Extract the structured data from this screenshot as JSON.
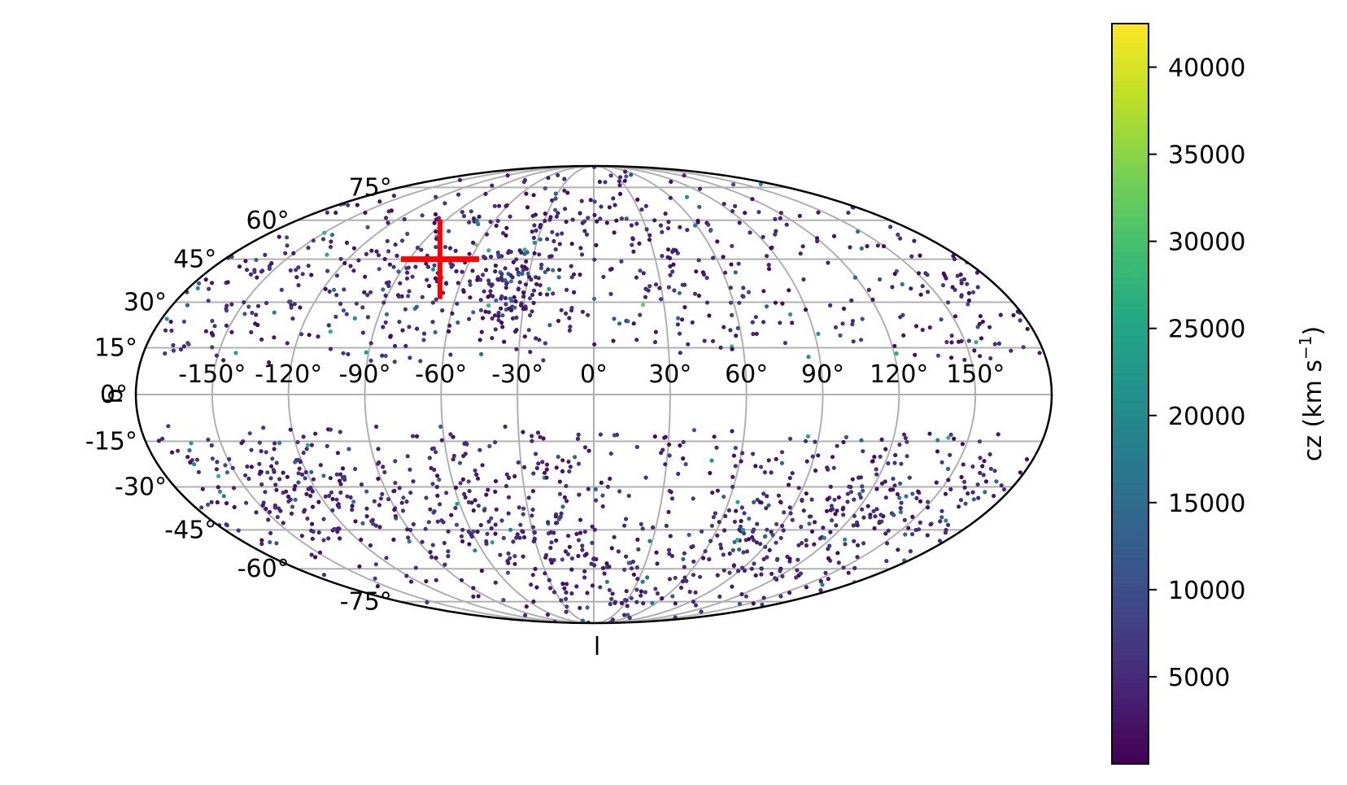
{
  "chart_data": {
    "type": "scatter",
    "projection": "mollweide",
    "xlabel": "l",
    "ylabel": "b",
    "grid": true,
    "lon_ticks": [
      -150,
      -120,
      -90,
      -60,
      -30,
      0,
      30,
      60,
      90,
      120,
      150
    ],
    "lon_tick_labels": [
      "-150°",
      "-120°",
      "-90°",
      "-60°",
      "-30°",
      "0°",
      "30°",
      "60°",
      "90°",
      "120°",
      "150°"
    ],
    "lat_ticks": [
      75,
      60,
      45,
      30,
      15,
      0,
      -15,
      -30,
      -45,
      -60,
      -75
    ],
    "lat_tick_labels": [
      "75°",
      "60°",
      "45°",
      "30°",
      "15°",
      "0°",
      "-15°",
      "-30°",
      "-45°",
      "-60°",
      "-75°"
    ],
    "colorbar": {
      "label_main": "cz (km s",
      "label_exp": "−1",
      "label_end": ")",
      "min": 0,
      "max": 42500,
      "ticks": [
        5000,
        10000,
        15000,
        20000,
        25000,
        30000,
        35000,
        40000
      ],
      "tick_labels": [
        "5000",
        "10000",
        "15000",
        "20000",
        "25000",
        "30000",
        "35000",
        "40000"
      ],
      "colormap": "viridis"
    },
    "marker": {
      "type": "plus",
      "l": -75,
      "b": 45,
      "color": "#ff0000"
    },
    "clusters": [
      {
        "l": -35,
        "b": 35,
        "n": 130,
        "spread_l": 14,
        "spread_b": 9
      },
      {
        "l": -80,
        "b": 38,
        "n": 110,
        "spread_l": 20,
        "spread_b": 13
      },
      {
        "l": -150,
        "b": 35,
        "n": 70,
        "spread_l": 22,
        "spread_b": 14
      },
      {
        "l": 160,
        "b": 30,
        "n": 60,
        "spread_l": 20,
        "spread_b": 14
      },
      {
        "l": 40,
        "b": 40,
        "n": 55,
        "spread_l": 22,
        "spread_b": 15
      },
      {
        "l": 0,
        "b": 62,
        "n": 60,
        "spread_l": 50,
        "spread_b": 10
      },
      {
        "l": -130,
        "b": -30,
        "n": 120,
        "spread_l": 16,
        "spread_b": 10
      },
      {
        "l": 90,
        "b": -40,
        "n": 140,
        "spread_l": 28,
        "spread_b": 13
      },
      {
        "l": 135,
        "b": -35,
        "n": 100,
        "spread_l": 24,
        "spread_b": 13
      },
      {
        "l": -30,
        "b": -40,
        "n": 110,
        "spread_l": 28,
        "spread_b": 14
      },
      {
        "l": 20,
        "b": -62,
        "n": 90,
        "spread_l": 60,
        "spread_b": 10
      },
      {
        "l": -70,
        "b": -30,
        "n": 70,
        "spread_l": 22,
        "spread_b": 13
      }
    ],
    "background_points": 900,
    "zone_of_avoidance_b": 10,
    "seed": 7
  }
}
